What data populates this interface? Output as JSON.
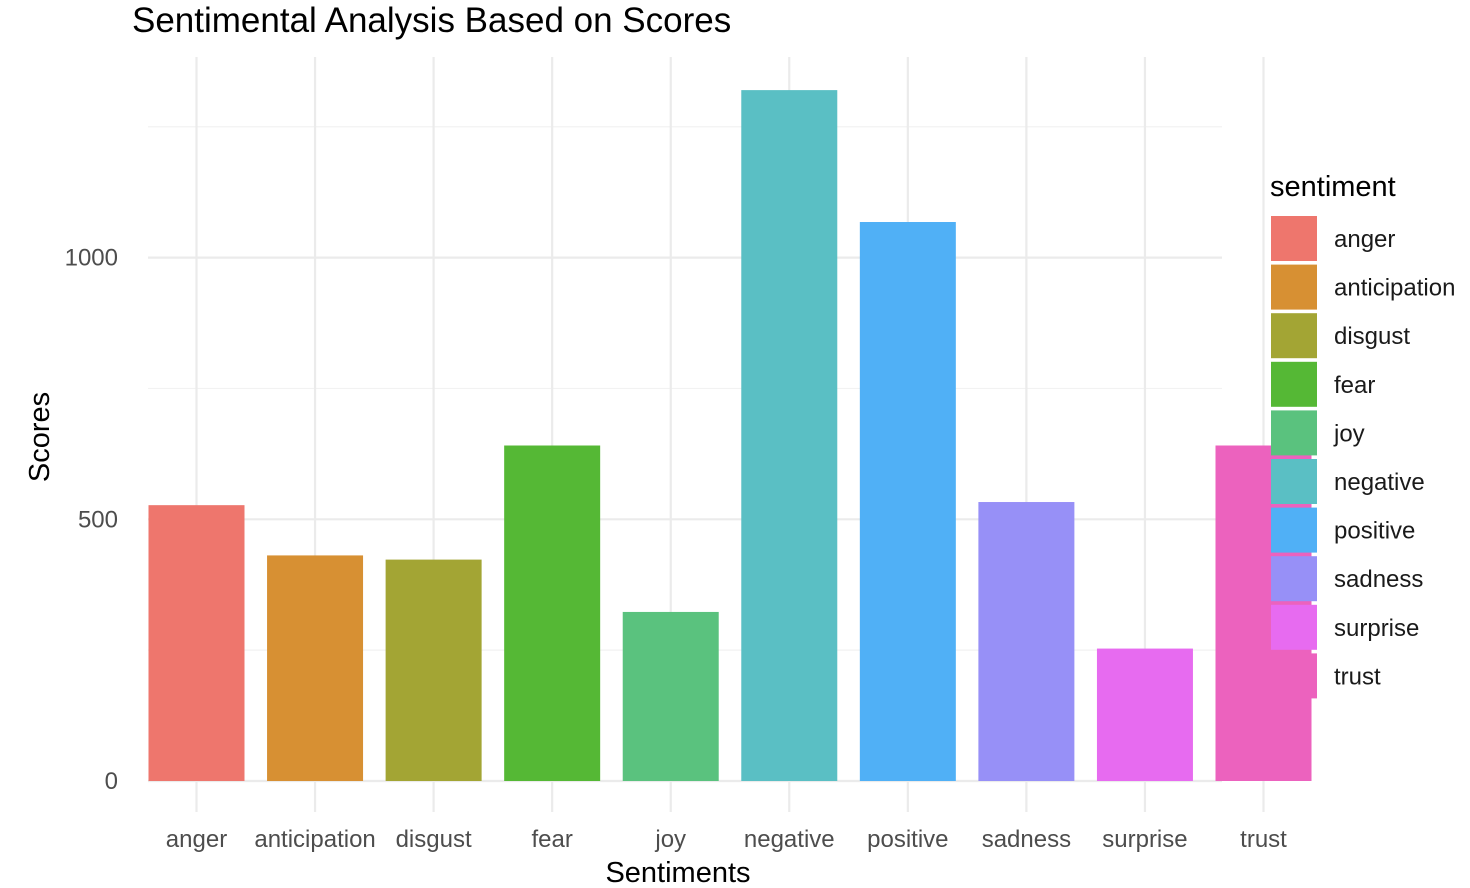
{
  "chart_data": {
    "type": "bar",
    "title": "Sentimental Analysis Based on Scores",
    "xlabel": "Sentiments",
    "ylabel": "Scores",
    "categories": [
      "anger",
      "anticipation",
      "disgust",
      "fear",
      "joy",
      "negative",
      "positive",
      "sadness",
      "surprise",
      "trust"
    ],
    "values": [
      527,
      431,
      423,
      641,
      323,
      1320,
      1068,
      533,
      253,
      641
    ],
    "colors": [
      "#F8766D",
      "#D89000",
      "#A3A500",
      "#39B600",
      "#00BF7D",
      "#00BFC4",
      "#00B0F6",
      "#9590FF",
      "#E76BF3",
      "#FF62BC"
    ],
    "bar_colors_rendered": [
      "#EE766D",
      "#D79033",
      "#A3A534",
      "#55B835",
      "#5AC27E",
      "#5ABFC4",
      "#50B0F6",
      "#9790F7",
      "#E76BF0",
      "#EC62BE"
    ],
    "yticks": [
      0,
      500,
      1000
    ],
    "ylim": [
      0,
      1320
    ],
    "grid": true,
    "legend": {
      "title": "sentiment",
      "placement": "right",
      "entries": [
        "anger",
        "anticipation",
        "disgust",
        "fear",
        "joy",
        "negative",
        "positive",
        "sadness",
        "surprise",
        "trust"
      ]
    }
  }
}
